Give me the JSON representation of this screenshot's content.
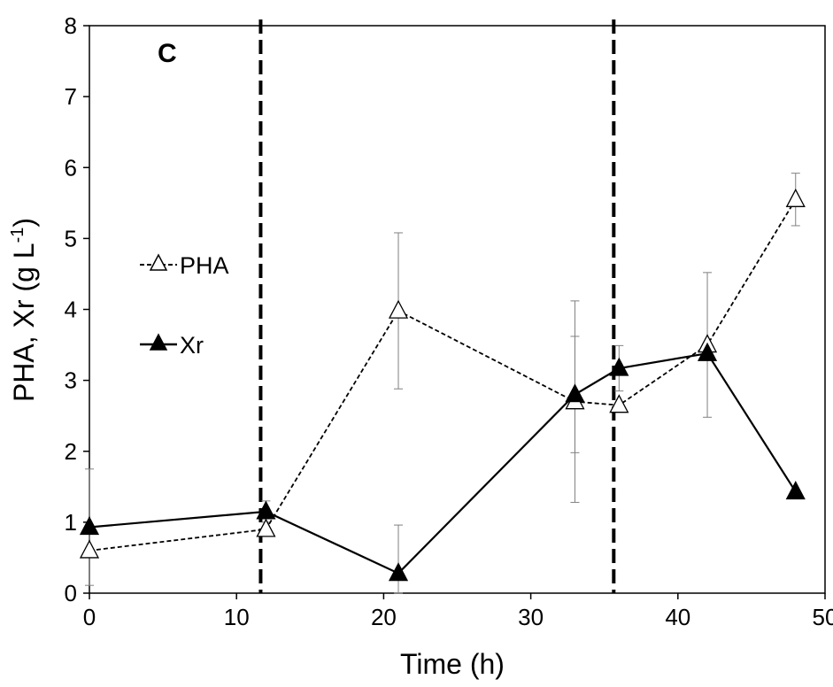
{
  "chart_data": {
    "type": "line",
    "panel_label": "C",
    "xlabel": "Time (h)",
    "ylabel": "PHA, Xr (g L",
    "ylabel_sup": "-1",
    "ylabel_close": ")",
    "xlim": [
      0,
      50
    ],
    "ylim": [
      0,
      8
    ],
    "x_ticks": [
      "0",
      "10",
      "20",
      "30",
      "40",
      "50"
    ],
    "y_ticks": [
      "0",
      "1",
      "2",
      "3",
      "4",
      "5",
      "6",
      "7",
      "8"
    ],
    "grid": false,
    "legend_position": "left",
    "vertical_lines": [
      12,
      36
    ],
    "series": [
      {
        "name": "PHA",
        "line_style": "dashed",
        "marker": "open-triangle",
        "x": [
          0,
          12,
          21,
          33,
          36,
          42,
          48
        ],
        "y": [
          0.6,
          0.9,
          3.98,
          2.7,
          2.65,
          3.5,
          5.55
        ],
        "err": [
          null,
          null,
          1.1,
          1.42,
          null,
          1.02,
          0.37
        ]
      },
      {
        "name": "Xr",
        "line_style": "solid",
        "marker": "filled-triangle",
        "x": [
          0,
          12,
          21,
          33,
          36,
          42,
          48
        ],
        "y": [
          0.93,
          1.15,
          0.28,
          2.8,
          3.17,
          3.38,
          1.43
        ],
        "err": [
          0.82,
          0.15,
          0.68,
          0.82,
          0.32,
          null,
          null
        ]
      }
    ]
  }
}
